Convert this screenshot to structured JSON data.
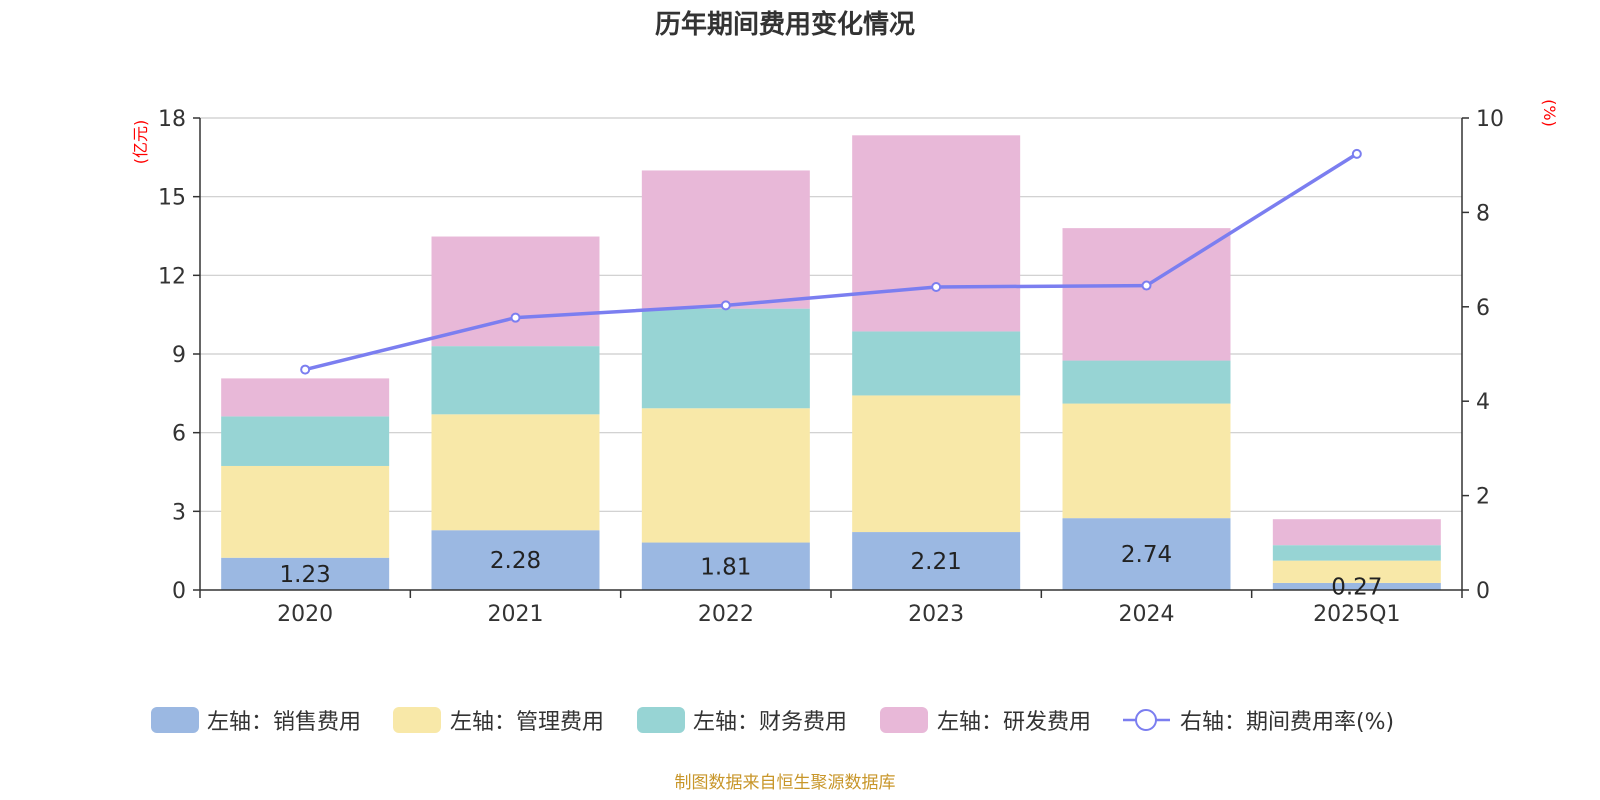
{
  "colors": {
    "sales": "#9bb8e2",
    "admin": "#f8e8a8",
    "finance": "#97d4d4",
    "rnd": "#e8b8d8",
    "line": "#7b7ef0",
    "unit_label": "#ff0000",
    "source": "#c8962a",
    "grid": "#cccccc",
    "axis": "#333333"
  },
  "chart_data": {
    "type": "bar",
    "stacked": true,
    "title": "历年期间费用变化情况",
    "categories": [
      "2020",
      "2021",
      "2022",
      "2023",
      "2024",
      "2025Q1"
    ],
    "left_axis": {
      "unit": "(亿元)",
      "ylim": [
        0,
        18
      ],
      "ticks": [
        "0",
        "3",
        "6",
        "9",
        "12",
        "15",
        "18"
      ]
    },
    "right_axis": {
      "unit": "(%)",
      "ylim": [
        0,
        10
      ],
      "ticks": [
        "0",
        "2",
        "4",
        "6",
        "8",
        "10"
      ]
    },
    "series": [
      {
        "key": "sales",
        "name": "左轴：销售费用",
        "axis": "left",
        "values": [
          1.23,
          2.28,
          1.81,
          2.21,
          2.74,
          0.27
        ],
        "labels": [
          "1.23",
          "2.28",
          "1.81",
          "2.21",
          "2.74",
          "0.27"
        ]
      },
      {
        "key": "admin",
        "name": "左轴：管理费用",
        "axis": "left",
        "values": [
          3.5,
          4.42,
          5.12,
          5.21,
          4.37,
          0.85
        ]
      },
      {
        "key": "finance",
        "name": "左轴：财务费用",
        "axis": "left",
        "values": [
          1.89,
          2.6,
          3.8,
          2.44,
          1.64,
          0.59
        ]
      },
      {
        "key": "rnd",
        "name": "左轴：研发费用",
        "axis": "left",
        "values": [
          1.45,
          4.18,
          5.27,
          7.48,
          5.05,
          0.99
        ]
      }
    ],
    "line_series": {
      "name": "右轴：期间费用率(%)",
      "axis": "right",
      "values": [
        4.67,
        5.77,
        6.03,
        6.42,
        6.45,
        9.24
      ]
    },
    "legend_position": "bottom",
    "grid": true
  },
  "source_note": "制图数据来自恒生聚源数据库"
}
